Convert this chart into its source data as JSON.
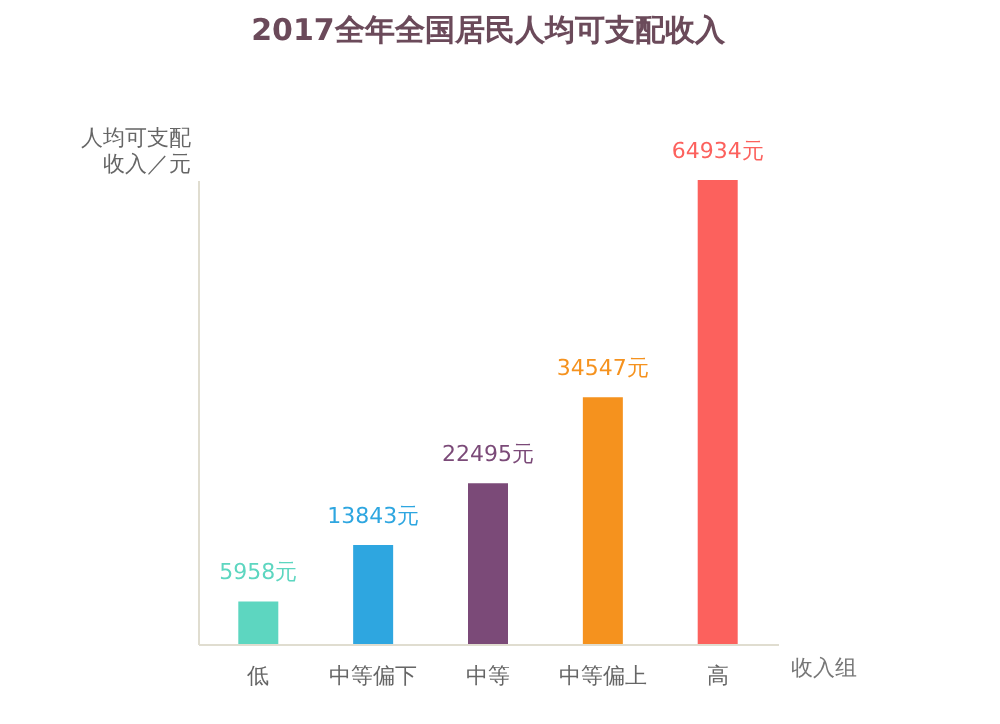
{
  "chart_data": {
    "type": "bar",
    "title": "2017全年全国居民人均可支配收入",
    "xlabel": "收入组",
    "ylabel": "人均可支配收入／元",
    "categories": [
      "低",
      "中等偏下",
      "中等",
      "中等偏上",
      "高"
    ],
    "values": [
      5958,
      13843,
      22495,
      34547,
      64934
    ],
    "colors": [
      "#5dd6c0",
      "#2ea6e0",
      "#7b4a78",
      "#f5921e",
      "#fc615d"
    ],
    "value_labels": [
      "5958元",
      "13843元",
      "22495元",
      "34547元",
      "64934元"
    ],
    "tick_labels": "x",
    "grid": false
  }
}
